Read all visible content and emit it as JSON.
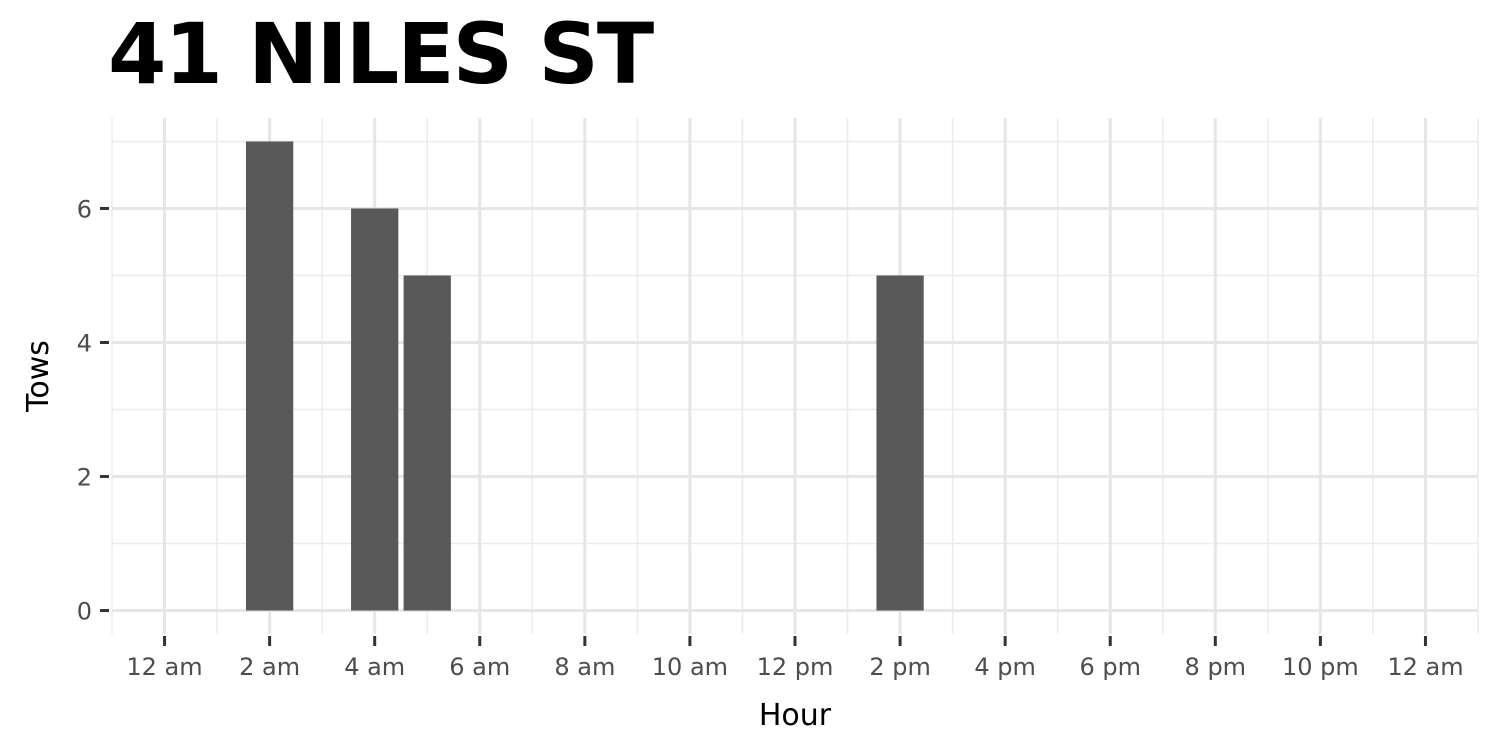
{
  "chart_data": {
    "type": "bar",
    "title": "41 NILES ST",
    "xlabel": "Hour",
    "ylabel": "Tows",
    "x_tick_labels": [
      "12 am",
      "2 am",
      "4 am",
      "6 am",
      "8 am",
      "10 am",
      "12 pm",
      "2 pm",
      "4 pm",
      "6 pm",
      "8 pm",
      "10 pm",
      "12 am"
    ],
    "x_tick_hours": [
      0,
      2,
      4,
      6,
      8,
      10,
      12,
      14,
      16,
      18,
      20,
      22,
      24
    ],
    "y_ticks": [
      0,
      2,
      4,
      6
    ],
    "xlim": [
      -1,
      25
    ],
    "ylim": [
      -0.35,
      7.35
    ],
    "grid": true,
    "bar_color": "#595959",
    "bars": [
      {
        "hour": 2,
        "value": 7
      },
      {
        "hour": 4,
        "value": 6
      },
      {
        "hour": 5,
        "value": 5
      },
      {
        "hour": 14,
        "value": 5
      }
    ]
  }
}
